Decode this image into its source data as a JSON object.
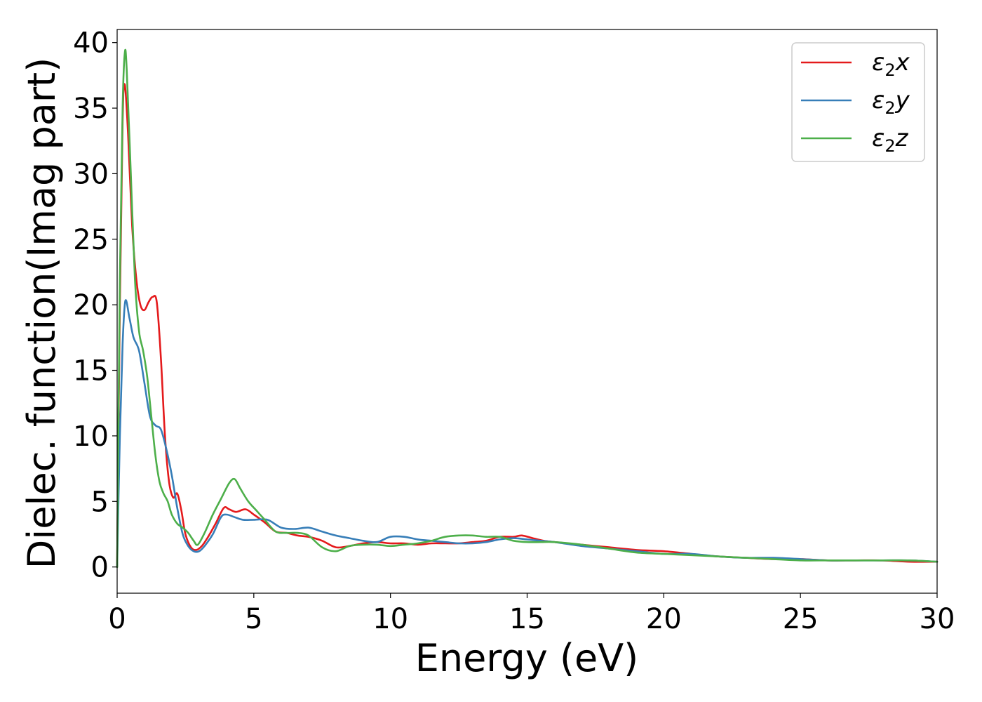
{
  "chart_data": {
    "type": "line",
    "title": "",
    "xlabel": "Energy (eV)",
    "ylabel": "Dielec. function(Imag part)",
    "xlim": [
      0,
      30
    ],
    "ylim": [
      -2,
      41
    ],
    "xticks": [
      0,
      5,
      10,
      15,
      20,
      25,
      30
    ],
    "xtick_labels": [
      "0",
      "5",
      "10",
      "15",
      "20",
      "25",
      "30"
    ],
    "yticks": [
      0,
      5,
      10,
      15,
      20,
      25,
      30,
      35,
      40
    ],
    "ytick_labels": [
      "0",
      "5",
      "10",
      "15",
      "20",
      "25",
      "30",
      "35",
      "40"
    ],
    "grid": false,
    "legend_position": "top-right",
    "series": [
      {
        "name": "ε2x",
        "legend_base": "ε",
        "legend_sub": "2",
        "legend_var": "x",
        "color": "#e41a1c",
        "x": [
          0,
          0.1,
          0.2,
          0.28,
          0.4,
          0.55,
          0.7,
          0.85,
          1.0,
          1.15,
          1.3,
          1.45,
          1.6,
          1.75,
          1.9,
          2.05,
          2.2,
          2.35,
          2.5,
          2.7,
          2.9,
          3.1,
          3.3,
          3.6,
          3.9,
          4.1,
          4.35,
          4.7,
          5.0,
          5.4,
          5.8,
          6.2,
          6.6,
          7.0,
          7.5,
          8.0,
          8.5,
          9.0,
          9.5,
          10.0,
          10.5,
          11.0,
          11.5,
          12.0,
          12.5,
          13.0,
          13.5,
          14.0,
          14.5,
          14.8,
          15.2,
          15.6,
          16.0,
          17.0,
          18.0,
          19.0,
          20.0,
          21.0,
          22.0,
          23.0,
          24.0,
          25.0,
          26.0,
          27.0,
          28.0,
          29.0,
          30.0
        ],
        "y": [
          0,
          20,
          34,
          36.8,
          33,
          26,
          22,
          20,
          19.6,
          20.2,
          20.6,
          20.2,
          16,
          10,
          6.5,
          5.3,
          5.6,
          4.3,
          2.5,
          1.5,
          1.3,
          1.6,
          2.2,
          3.3,
          4.5,
          4.4,
          4.2,
          4.4,
          4.0,
          3.4,
          2.7,
          2.6,
          2.4,
          2.3,
          2.0,
          1.5,
          1.6,
          1.8,
          1.9,
          1.8,
          1.8,
          1.7,
          1.8,
          1.8,
          1.8,
          1.9,
          2.0,
          2.3,
          2.3,
          2.4,
          2.2,
          2.0,
          1.9,
          1.7,
          1.5,
          1.3,
          1.2,
          1.0,
          0.8,
          0.7,
          0.6,
          0.6,
          0.5,
          0.5,
          0.5,
          0.4,
          0.4
        ]
      },
      {
        "name": "ε2y",
        "legend_base": "ε",
        "legend_sub": "2",
        "legend_var": "y",
        "color": "#377eb8",
        "x": [
          0,
          0.1,
          0.2,
          0.3,
          0.45,
          0.6,
          0.8,
          1.0,
          1.2,
          1.4,
          1.6,
          1.8,
          2.0,
          2.2,
          2.4,
          2.6,
          2.8,
          3.0,
          3.2,
          3.5,
          3.8,
          4.0,
          4.3,
          4.6,
          5.0,
          5.5,
          6.0,
          6.5,
          7.0,
          7.5,
          8.0,
          8.5,
          9.0,
          9.5,
          10.0,
          10.5,
          11.0,
          11.5,
          12.0,
          12.5,
          13.0,
          13.5,
          14.0,
          14.5,
          15.0,
          15.5,
          16.0,
          17.0,
          18.0,
          19.0,
          20.0,
          21.0,
          22.0,
          23.0,
          24.0,
          25.0,
          26.0,
          27.0,
          28.0,
          29.0,
          30.0
        ],
        "y": [
          0,
          10,
          17,
          20.3,
          19,
          17.5,
          16.5,
          14,
          11.5,
          10.8,
          10.5,
          9,
          7,
          4.5,
          2.5,
          1.6,
          1.2,
          1.2,
          1.6,
          2.5,
          3.8,
          4.0,
          3.8,
          3.6,
          3.6,
          3.6,
          3.0,
          2.9,
          3.0,
          2.7,
          2.4,
          2.2,
          2.0,
          1.9,
          2.3,
          2.3,
          2.1,
          2.0,
          1.9,
          1.8,
          1.8,
          1.9,
          2.1,
          2.2,
          2.1,
          2.0,
          1.9,
          1.6,
          1.4,
          1.2,
          1.0,
          1.0,
          0.8,
          0.7,
          0.7,
          0.6,
          0.5,
          0.5,
          0.5,
          0.5,
          0.4
        ]
      },
      {
        "name": "ε2z",
        "legend_base": "ε",
        "legend_sub": "2",
        "legend_var": "z",
        "color": "#4daf4a",
        "x": [
          0,
          0.1,
          0.2,
          0.28,
          0.35,
          0.5,
          0.65,
          0.8,
          0.95,
          1.1,
          1.25,
          1.4,
          1.55,
          1.7,
          1.85,
          2.0,
          2.2,
          2.4,
          2.6,
          2.8,
          2.95,
          3.2,
          3.5,
          3.8,
          4.1,
          4.3,
          4.5,
          4.8,
          5.1,
          5.4,
          5.8,
          6.2,
          6.6,
          7.0,
          7.5,
          8.0,
          8.5,
          9.0,
          9.5,
          10.0,
          10.5,
          11.0,
          11.5,
          12.0,
          12.5,
          13.0,
          13.5,
          14.0,
          14.5,
          15.0,
          15.5,
          16.0,
          17.0,
          18.0,
          19.0,
          20.0,
          21.0,
          22.0,
          23.0,
          24.0,
          25.0,
          26.0,
          27.0,
          28.0,
          29.0,
          30.0
        ],
        "y": [
          0,
          22,
          35,
          39.2,
          38,
          30,
          22,
          18,
          16.5,
          14.5,
          11.5,
          8.5,
          6.5,
          5.6,
          5.0,
          4.0,
          3.3,
          3.0,
          2.6,
          2.0,
          1.7,
          2.6,
          4.0,
          5.2,
          6.4,
          6.7,
          6.0,
          5.0,
          4.3,
          3.6,
          2.7,
          2.6,
          2.6,
          2.4,
          1.5,
          1.2,
          1.6,
          1.7,
          1.7,
          1.6,
          1.7,
          1.8,
          2.0,
          2.3,
          2.4,
          2.4,
          2.3,
          2.3,
          2.0,
          1.9,
          1.9,
          1.9,
          1.7,
          1.4,
          1.1,
          1.0,
          0.9,
          0.8,
          0.7,
          0.6,
          0.5,
          0.5,
          0.5,
          0.5,
          0.5,
          0.4
        ]
      }
    ]
  }
}
